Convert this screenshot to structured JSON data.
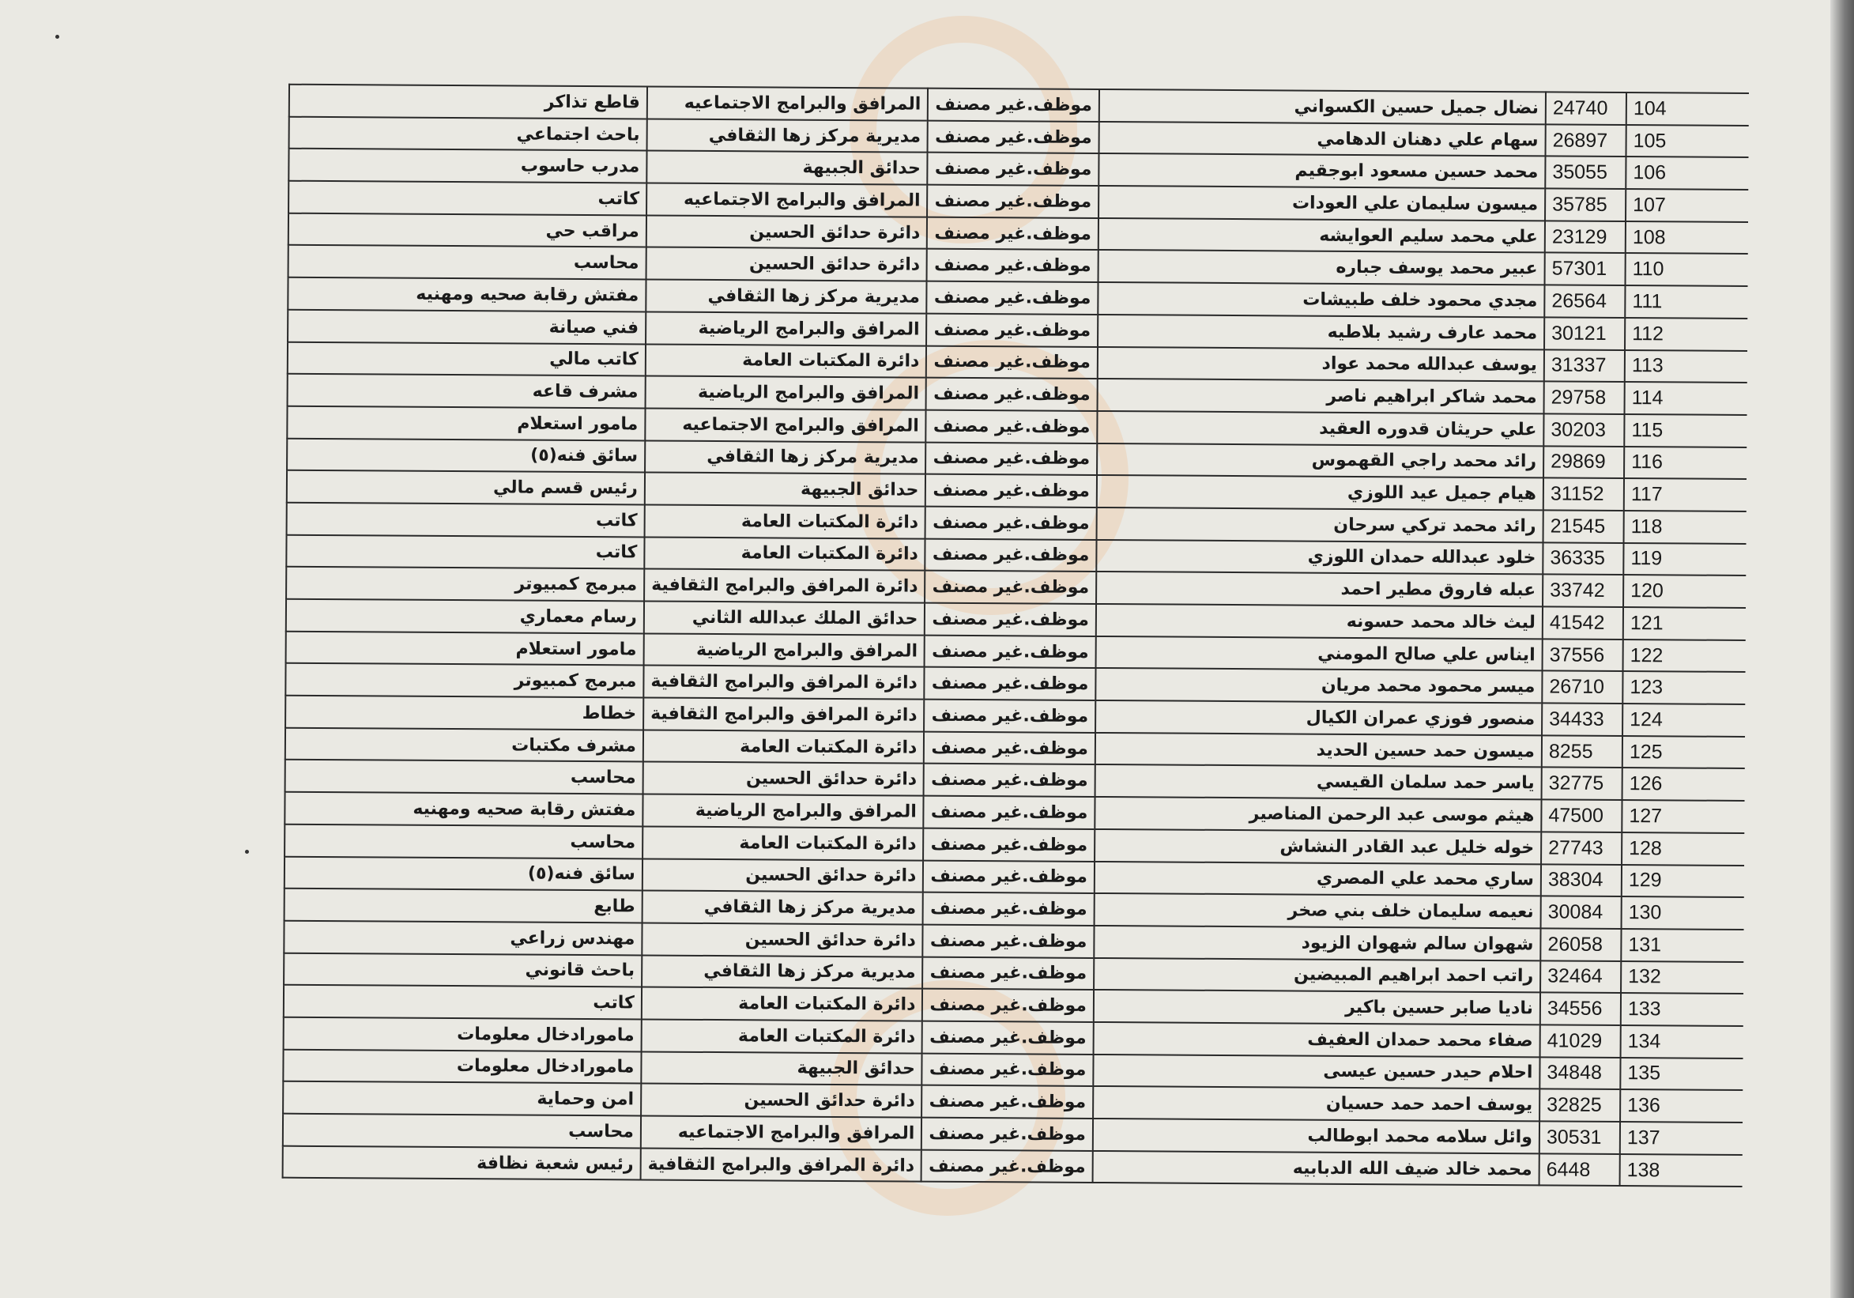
{
  "table": {
    "rows": [
      [
        "104",
        "24740",
        "نضال جميل حسين الكسواني",
        "موظف.غير مصنف",
        "المرافق والبرامج الاجتماعيه",
        "قاطع تذاكر"
      ],
      [
        "105",
        "26897",
        "سهام علي دهنان الدهامي",
        "موظف.غير مصنف",
        "مديرية مركز زها الثقافي",
        "باحث اجتماعي"
      ],
      [
        "106",
        "35055",
        "محمد حسين مسعود ابوجقيم",
        "موظف.غير مصنف",
        "حدائق الجبيهة",
        "مدرب حاسوب"
      ],
      [
        "107",
        "35785",
        "ميسون سليمان علي العودات",
        "موظف.غير مصنف",
        "المرافق والبرامج الاجتماعيه",
        "كاتب"
      ],
      [
        "108",
        "23129",
        "علي محمد سليم العوايشه",
        "موظف.غير مصنف",
        "دائرة حدائق الحسين",
        "مراقب حي"
      ],
      [
        "110",
        "57301",
        "عبير محمد يوسف جباره",
        "موظف.غير مصنف",
        "دائرة حدائق الحسين",
        "محاسب"
      ],
      [
        "111",
        "26564",
        "مجدي محمود خلف طبيشات",
        "موظف.غير مصنف",
        "مديرية مركز زها الثقافي",
        "مفتش رقابة صحيه ومهنيه"
      ],
      [
        "112",
        "30121",
        "محمد عارف رشيد بلاطيه",
        "موظف.غير مصنف",
        "المرافق والبرامج الرياضية",
        "فني صيانة"
      ],
      [
        "113",
        "31337",
        "يوسف عبدالله محمد عواد",
        "موظف.غير مصنف",
        "دائرة المكتبات العامة",
        "كاتب مالي"
      ],
      [
        "114",
        "29758",
        "محمد شاكر ابراهيم ناصر",
        "موظف.غير مصنف",
        "المرافق والبرامج الرياضية",
        "مشرف قاعه"
      ],
      [
        "115",
        "30203",
        "علي حريثان قدوره العقيد",
        "موظف.غير مصنف",
        "المرافق والبرامج الاجتماعيه",
        "مامور استعلام"
      ],
      [
        "116",
        "29869",
        "رائد محمد راجي القهموس",
        "موظف.غير مصنف",
        "مديرية مركز زها الثقافي",
        "سائق فنه(٥)"
      ],
      [
        "117",
        "31152",
        "هيام جميل عيد اللوزي",
        "موظف.غير مصنف",
        "حدائق الجبيهة",
        "رئيس قسم مالي"
      ],
      [
        "118",
        "21545",
        "رائد محمد تركي سرحان",
        "موظف.غير مصنف",
        "دائرة المكتبات العامة",
        "كاتب"
      ],
      [
        "119",
        "36335",
        "خلود عبدالله حمدان اللوزي",
        "موظف.غير مصنف",
        "دائرة المكتبات العامة",
        "كاتب"
      ],
      [
        "120",
        "33742",
        "عبله فاروق مطير احمد",
        "موظف.غير مصنف",
        "دائرة المرافق والبرامج الثقافية",
        "مبرمج كمبيوتر"
      ],
      [
        "121",
        "41542",
        "ليث خالد محمد حسونه",
        "موظف.غير مصنف",
        "حدائق الملك عبدالله الثاني",
        "رسام معماري"
      ],
      [
        "122",
        "37556",
        "ايناس علي صالح المومني",
        "موظف.غير مصنف",
        "المرافق والبرامج الرياضية",
        "مامور استعلام"
      ],
      [
        "123",
        "26710",
        "ميسر محمود محمد مريان",
        "موظف.غير مصنف",
        "دائرة المرافق والبرامج الثقافية",
        "مبرمج كمبيوتر"
      ],
      [
        "124",
        "34433",
        "منصور فوزي عمران الكيال",
        "موظف.غير مصنف",
        "دائرة المرافق والبرامج الثقافية",
        "خطاط"
      ],
      [
        "125",
        "8255",
        "ميسون حمد حسين الحديد",
        "موظف.غير مصنف",
        "دائرة المكتبات العامة",
        "مشرف مكتبات"
      ],
      [
        "126",
        "32775",
        "ياسر حمد سلمان القيسي",
        "موظف.غير مصنف",
        "دائرة حدائق الحسين",
        "محاسب"
      ],
      [
        "127",
        "47500",
        "هيثم موسى عبد الرحمن المناصير",
        "موظف.غير مصنف",
        "المرافق والبرامج الرياضية",
        "مفتش رقابة صحيه ومهنيه"
      ],
      [
        "128",
        "27743",
        "خوله خليل عبد القادر النشاش",
        "موظف.غير مصنف",
        "دائرة المكتبات العامة",
        "محاسب"
      ],
      [
        "129",
        "38304",
        "ساري محمد علي المصري",
        "موظف.غير مصنف",
        "دائرة حدائق الحسين",
        "سائق فنه(٥)"
      ],
      [
        "130",
        "30084",
        "نعيمه سليمان خلف بني صخر",
        "موظف.غير مصنف",
        "مديرية مركز زها الثقافي",
        "طابع"
      ],
      [
        "131",
        "26058",
        "شهوان سالم شهوان الزيود",
        "موظف.غير مصنف",
        "دائرة حدائق الحسين",
        "مهندس زراعي"
      ],
      [
        "132",
        "32464",
        "راتب احمد ابراهيم المبيضين",
        "موظف.غير مصنف",
        "مديرية مركز زها الثقافي",
        "باحث قانوني"
      ],
      [
        "133",
        "34556",
        "ناديا صابر حسين باكير",
        "موظف.غير مصنف",
        "دائرة المكتبات العامة",
        "كاتب"
      ],
      [
        "134",
        "41029",
        "صفاء محمد حمدان العفيف",
        "موظف.غير مصنف",
        "دائرة المكتبات العامة",
        "مامورادخال معلومات"
      ],
      [
        "135",
        "34848",
        "احلام حيدر حسين عيسى",
        "موظف.غير مصنف",
        "حدائق الجبيهة",
        "مامورادخال معلومات"
      ],
      [
        "136",
        "32825",
        "يوسف احمد حمد حسيان",
        "موظف.غير مصنف",
        "دائرة حدائق الحسين",
        "امن وحماية"
      ],
      [
        "137",
        "30531",
        "وائل سلامه محمد ابوطالب",
        "موظف.غير مصنف",
        "المرافق والبرامج الاجتماعيه",
        "محاسب"
      ],
      [
        "138",
        "6448",
        "محمد خالد ضيف الله الدبابيه",
        "موظف.غير مصنف",
        "دائرة المرافق والبرامج الثقافية",
        "رئيس شعبة نظافة"
      ]
    ]
  },
  "colors": {
    "paper": "#eae9e3",
    "ink": "#1a1a1a",
    "watermark": "#f0aa6e"
  }
}
